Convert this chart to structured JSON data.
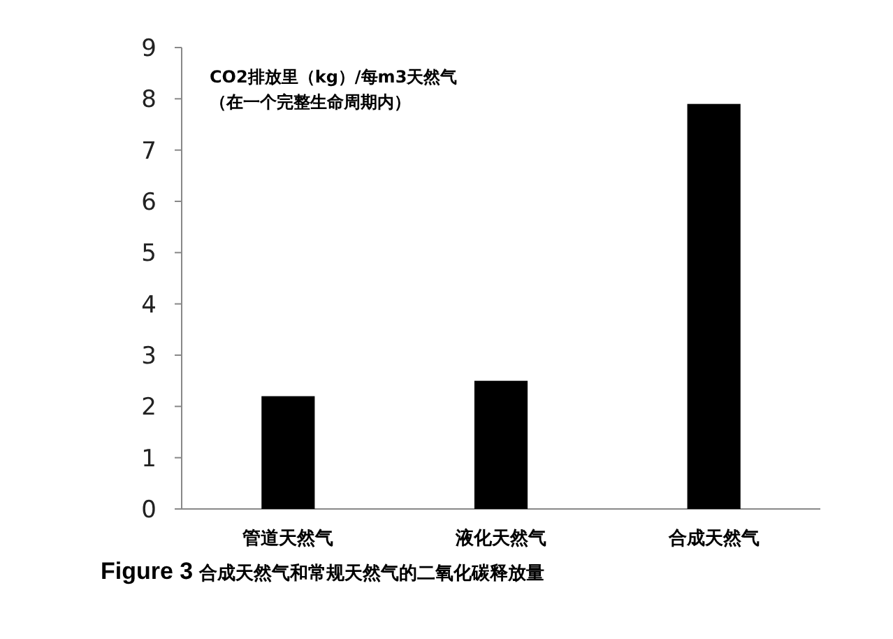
{
  "chart_data": {
    "type": "bar",
    "title": "**Figure 3** 合成天然气和常规天然气的二氧化碳释放量",
    "ylabel": "CO2排放里（kg）/每m3天然气（在一个完整生命周期内）",
    "categories": [
      "管道天然气",
      "液化天然气",
      "合成天然气"
    ],
    "values": [
      2.2,
      2.5,
      7.9
    ],
    "color": "#000000",
    "ylim": [
      0,
      9
    ],
    "yticks": [
      0,
      1,
      2,
      3,
      4,
      5,
      6,
      7,
      8,
      9
    ]
  }
}
